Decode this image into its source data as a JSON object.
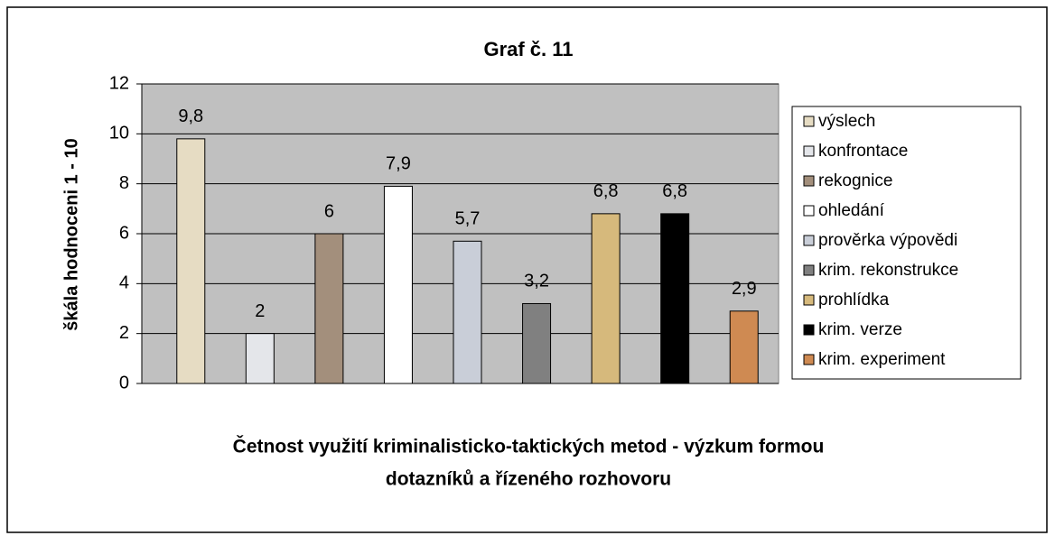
{
  "chart_data": {
    "type": "bar",
    "title": "Graf č. 11",
    "ylabel": "škála hodnoceni 1 - 10",
    "xlabel": [
      "Četnost využití kriminalisticko-taktických metod - výzkum  formou",
      "dotazníků a řízeného rozhovoru"
    ],
    "series": [
      {
        "name": "výslech",
        "color": "#e6dcc3",
        "values": [
          9.8
        ],
        "value_labels": [
          "9,8"
        ]
      },
      {
        "name": "konfrontace",
        "color": "#e4e6ea",
        "values": [
          2
        ]
      },
      {
        "name": "rekognice",
        "color": "#a38f7c",
        "values": [
          6
        ]
      },
      {
        "name": "ohledání",
        "color": "#ffffff",
        "values": [
          7.9
        ],
        "value_labels": [
          "7,9"
        ]
      },
      {
        "name": "prověrka výpovědi",
        "color": "#c9ced8",
        "values": [
          5.7
        ],
        "value_labels": [
          "5,7"
        ]
      },
      {
        "name": "krim. rekonstrukce",
        "color": "#808080",
        "values": [
          3.2
        ],
        "value_labels": [
          "3,2"
        ]
      },
      {
        "name": "prohlídka",
        "color": "#d6b97c",
        "values": [
          6.8
        ],
        "value_labels": [
          "6,8"
        ]
      },
      {
        "name": "krim. verze",
        "color": "#000000",
        "values": [
          6.8
        ],
        "value_labels": [
          "6,8"
        ]
      },
      {
        "name": "krim. experiment",
        "color": "#cf8a52",
        "values": [
          2.9
        ],
        "value_labels": [
          "2,9"
        ]
      }
    ],
    "ylim": [
      0,
      12
    ],
    "yticks": [
      0,
      2,
      4,
      6,
      8,
      10,
      12
    ],
    "grid": true,
    "legend": "right"
  }
}
